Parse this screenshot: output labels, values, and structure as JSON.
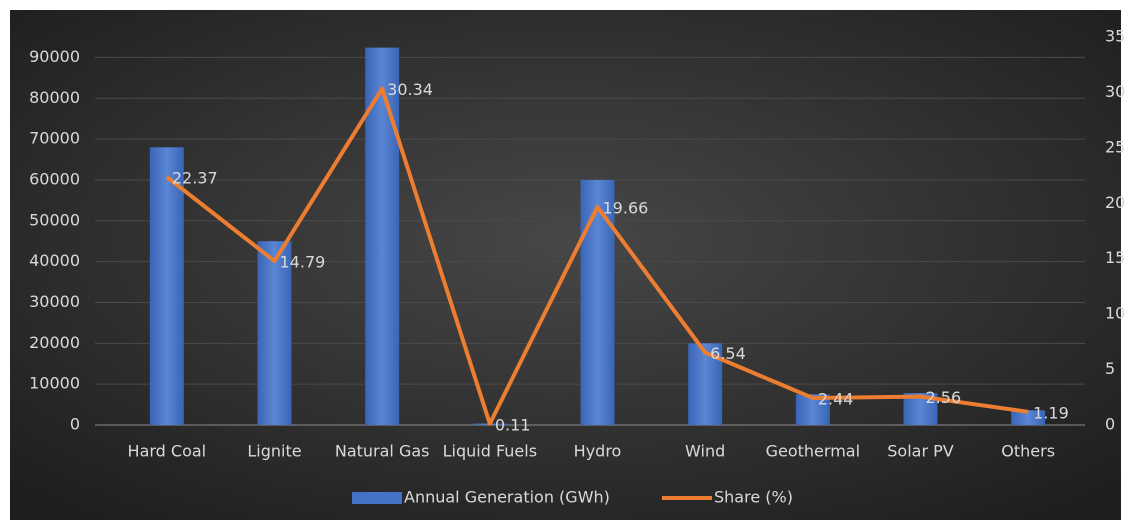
{
  "chart_data": {
    "type": "bar_line",
    "categories": [
      "Hard Coal",
      "Lignite",
      "Natural Gas",
      "Liquid Fuels",
      "Hydro",
      "Wind",
      "Geothermal",
      "Solar PV",
      "Others"
    ],
    "series": [
      {
        "name": "Annual Generation (GWh)",
        "type": "bar",
        "color": "#4472c4",
        "axis": "y",
        "values": [
          68000,
          45000,
          92400,
          350,
          60000,
          20000,
          7500,
          7800,
          3600
        ]
      },
      {
        "name": "Share (%)",
        "type": "line",
        "color": "#ed7d31",
        "axis": "y2",
        "values": [
          22.37,
          14.79,
          30.34,
          0.11,
          19.66,
          6.54,
          2.44,
          2.56,
          1.19
        ]
      }
    ],
    "ylim": [
      0,
      95000
    ],
    "yticks": [
      0,
      10000,
      20000,
      30000,
      40000,
      50000,
      60000,
      70000,
      80000,
      90000
    ],
    "y2lim": [
      0,
      35
    ],
    "y2ticks": [
      0,
      5,
      10,
      15,
      20,
      25,
      30,
      35
    ],
    "grid": true,
    "legend": "bottom"
  }
}
